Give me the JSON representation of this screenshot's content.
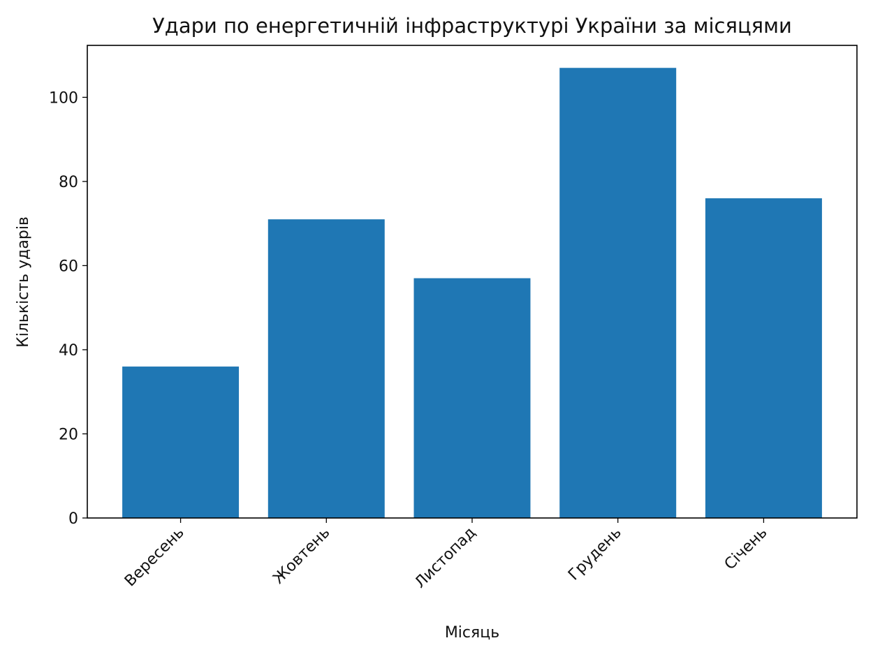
{
  "chart_data": {
    "type": "bar",
    "title": "Удари по енергетичній інфраструктурі України за місяцями",
    "xlabel": "Місяць",
    "ylabel": "Кількість ударів",
    "categories": [
      "Вересень",
      "Жовтень",
      "Листопад",
      "Грудень",
      "Січень"
    ],
    "values": [
      36,
      71,
      57,
      107,
      76
    ],
    "ylim": [
      0,
      112.35
    ],
    "yticks": [
      0,
      20,
      40,
      60,
      80,
      100
    ],
    "grid": false,
    "color": "#1f77b4"
  }
}
